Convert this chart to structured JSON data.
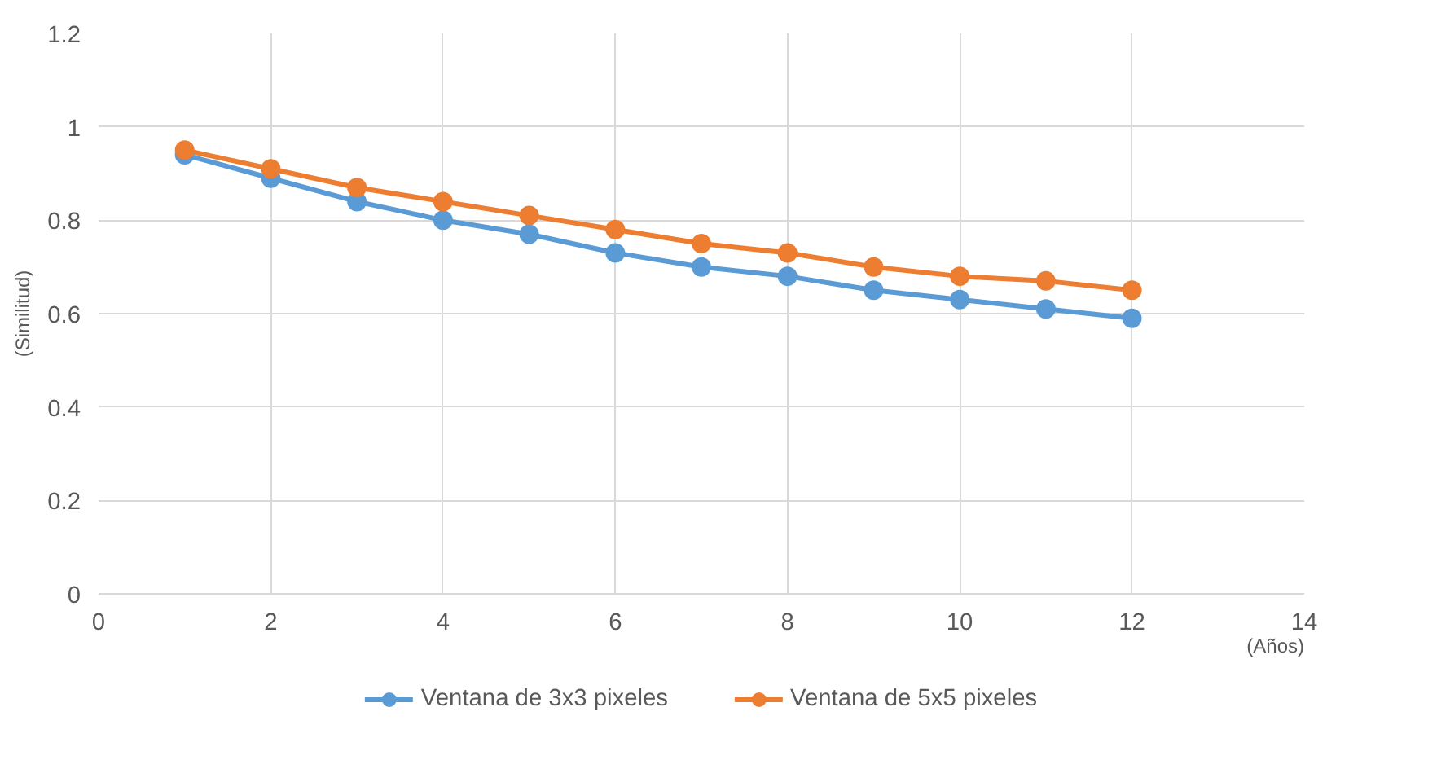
{
  "chart_data": {
    "type": "line",
    "xlabel": "(Años)",
    "ylabel": "(Similitud)",
    "x": [
      1,
      2,
      3,
      4,
      5,
      6,
      7,
      8,
      9,
      10,
      11,
      12
    ],
    "series": [
      {
        "name": "Ventana de 3x3 pixeles",
        "color": "#5b9bd5",
        "values": [
          0.94,
          0.89,
          0.84,
          0.8,
          0.77,
          0.73,
          0.7,
          0.68,
          0.65,
          0.63,
          0.61,
          0.59
        ]
      },
      {
        "name": "Ventana de 5x5 pixeles",
        "color": "#ed7d31",
        "values": [
          0.95,
          0.91,
          0.87,
          0.84,
          0.81,
          0.78,
          0.75,
          0.73,
          0.7,
          0.68,
          0.67,
          0.65
        ]
      }
    ],
    "xlim": [
      0,
      14
    ],
    "xticks": [
      0,
      2,
      4,
      6,
      8,
      10,
      12,
      14
    ],
    "ylim": [
      0,
      1.2
    ],
    "yticks": [
      0,
      0.2,
      0.4,
      0.6,
      0.8,
      1,
      1.2
    ],
    "grid": true,
    "legend": "bottom",
    "marker": "circle",
    "line_style": "solid"
  }
}
